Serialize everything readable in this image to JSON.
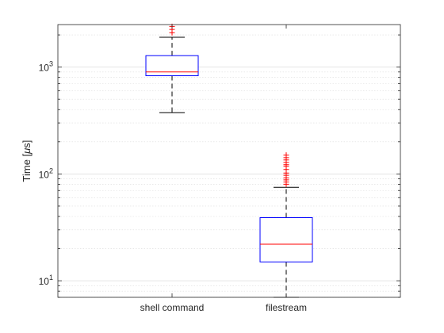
{
  "chart_data": {
    "type": "box",
    "ylabel_text": "Time [",
    "ylabel_mu": "μ",
    "ylabel_unit": "s]",
    "yscale": "log",
    "ylim": [
      7,
      2500
    ],
    "grid": "y-major-and-minor",
    "yticks": [
      {
        "value": 10,
        "base": "10",
        "exp": "1"
      },
      {
        "value": 100,
        "base": "10",
        "exp": "2"
      },
      {
        "value": 1000,
        "base": "10",
        "exp": "3"
      }
    ],
    "categories": [
      "shell command",
      "filestream"
    ],
    "boxes": [
      {
        "category": "shell command",
        "whisker_low": 375,
        "q1": 830,
        "median": 900,
        "q3": 1280,
        "whisker_high": 1900,
        "outliers": [
          2100,
          2250,
          2400
        ]
      },
      {
        "category": "filestream",
        "whisker_low": 7,
        "q1": 15,
        "median": 22,
        "q3": 39,
        "whisker_high": 75,
        "outliers": [
          80,
          84,
          88,
          92,
          97,
          102,
          110,
          118,
          122,
          128,
          135,
          142,
          150
        ]
      }
    ],
    "colors": {
      "box": "#0000ff",
      "median": "#ff0000",
      "whisker": "#000000",
      "outlier": "#ff0000",
      "axis": "#262626",
      "grid": "#dcdcdc"
    }
  }
}
